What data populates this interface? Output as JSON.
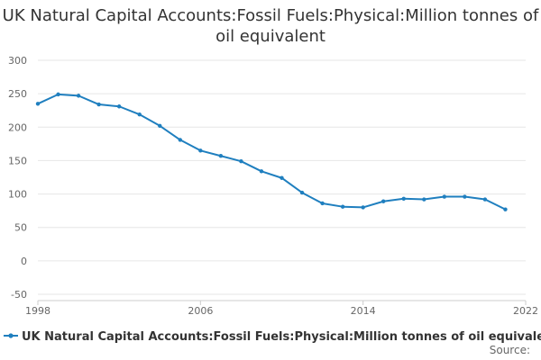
{
  "chart_data": {
    "type": "line",
    "title": "UK Natural Capital Accounts:Fossil Fuels:Physical:Million tonnes of oil equivalent",
    "xlabel": "",
    "ylabel": "",
    "xlim": [
      1998,
      2022
    ],
    "ylim": [
      -50,
      300
    ],
    "yticks": [
      -50,
      0,
      50,
      100,
      150,
      200,
      250,
      300
    ],
    "xticks": [
      1998,
      2006,
      2014,
      2022
    ],
    "grid": true,
    "legend_position": "bottom",
    "series": [
      {
        "name": "UK Natural Capital Accounts:Fossil Fuels:Physical:Million tonnes of oil equivalent",
        "color": "#1f7fbf",
        "x": [
          1998,
          1999,
          2000,
          2001,
          2002,
          2003,
          2004,
          2005,
          2006,
          2007,
          2008,
          2009,
          2010,
          2011,
          2012,
          2013,
          2014,
          2015,
          2016,
          2017,
          2018,
          2019,
          2020,
          2021
        ],
        "y": [
          235,
          249,
          247,
          234,
          231,
          219,
          202,
          181,
          165,
          157,
          149,
          134,
          124,
          102,
          86,
          81,
          80,
          89,
          93,
          92,
          96,
          96,
          92,
          77
        ]
      }
    ],
    "source_label": "Source:"
  }
}
